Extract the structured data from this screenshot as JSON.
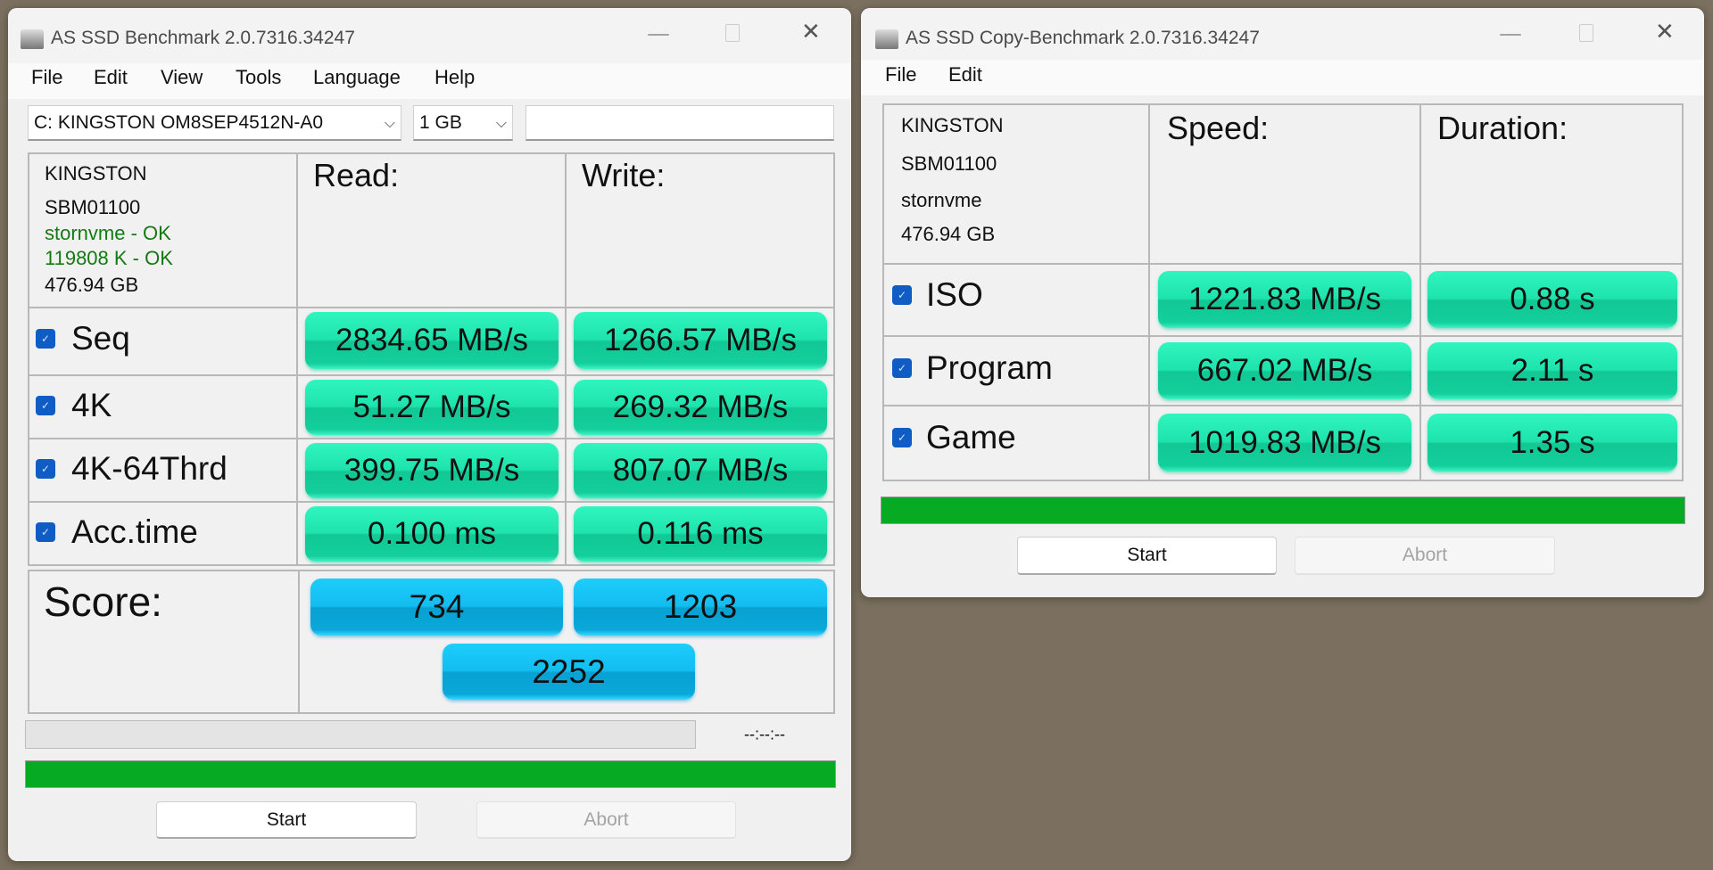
{
  "colors": {
    "pill_green": "#1fe3ad",
    "pill_blue": "#13bdf0",
    "progress_green": "#06aa23",
    "ok_text": "#137a13"
  },
  "main_window": {
    "title": "AS SSD Benchmark 2.0.7316.34247",
    "menu": [
      "File",
      "Edit",
      "View",
      "Tools",
      "Language",
      "Help"
    ],
    "drive_select": "C: KINGSTON OM8SEP4512N-A0",
    "size_select": "1 GB",
    "text_field": "",
    "info": {
      "vendor": "KINGSTON",
      "firmware": "SBM01100",
      "driver": "stornvme - OK",
      "alignment": "119808 K - OK",
      "capacity": "476.94 GB"
    },
    "read_header": "Read:",
    "write_header": "Write:",
    "rows": [
      {
        "label": "Seq",
        "checked": true,
        "read": "2834.65 MB/s",
        "write": "1266.57 MB/s"
      },
      {
        "label": "4K",
        "checked": true,
        "read": "51.27 MB/s",
        "write": "269.32 MB/s"
      },
      {
        "label": "4K-64Thrd",
        "checked": true,
        "read": "399.75 MB/s",
        "write": "807.07 MB/s"
      },
      {
        "label": "Acc.time",
        "checked": true,
        "read": "0.100 ms",
        "write": "0.116 ms"
      }
    ],
    "score": {
      "label": "Score:",
      "read": "734",
      "write": "1203",
      "total": "2252"
    },
    "test_progress_percent": 0,
    "elapsed_time": "--:--:--",
    "overall_progress_percent": 100,
    "start_label": "Start",
    "abort_label": "Abort"
  },
  "copy_window": {
    "title": "AS SSD Copy-Benchmark 2.0.7316.34247",
    "menu": [
      "File",
      "Edit"
    ],
    "info": {
      "vendor": "KINGSTON",
      "firmware": "SBM01100",
      "driver": "stornvme",
      "capacity": "476.94 GB"
    },
    "speed_header": "Speed:",
    "duration_header": "Duration:",
    "rows": [
      {
        "label": "ISO",
        "checked": true,
        "speed": "1221.83 MB/s",
        "duration": "0.88 s"
      },
      {
        "label": "Program",
        "checked": true,
        "speed": "667.02 MB/s",
        "duration": "2.11 s"
      },
      {
        "label": "Game",
        "checked": true,
        "speed": "1019.83 MB/s",
        "duration": "1.35 s"
      }
    ],
    "progress_percent": 100,
    "start_label": "Start",
    "abort_label": "Abort"
  }
}
